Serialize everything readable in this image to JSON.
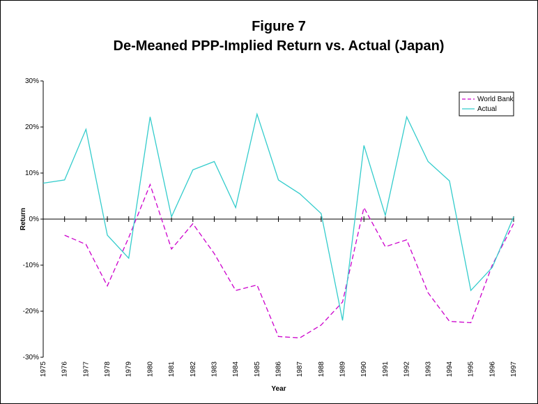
{
  "chart_data": {
    "type": "line",
    "title": "Figure 7",
    "subtitle": "De-Meaned PPP-Implied Return vs. Actual (Japan)",
    "x_label": "Year",
    "y_label": "Return",
    "categories": [
      "1975",
      "1976",
      "1977",
      "1978",
      "1979",
      "1980",
      "1981",
      "1982",
      "1983",
      "1984",
      "1985",
      "1986",
      "1987",
      "1988",
      "1989",
      "1990",
      "1991",
      "1992",
      "1993",
      "1994",
      "1995",
      "1996",
      "1997"
    ],
    "series": [
      {
        "name": "World Bank",
        "color": "#cc00cc",
        "dash": true,
        "values": [
          null,
          -3.5,
          -5.5,
          -14.5,
          -4,
          7.5,
          -6.5,
          -1,
          -7.5,
          -15.5,
          -14.3,
          -25.5,
          -25.8,
          -23,
          -18,
          2.5,
          -6,
          -4.5,
          -16,
          -22.2,
          -22.5,
          -10,
          -1
        ]
      },
      {
        "name": "Actual",
        "color": "#33cccc",
        "dash": false,
        "values": [
          7.8,
          8.5,
          19.5,
          -3.5,
          -8.5,
          22.2,
          0.5,
          10.7,
          12.5,
          2.5,
          22.8,
          8.5,
          5.5,
          1.2,
          -22,
          16,
          0.8,
          22.2,
          12.5,
          8.3,
          -15.5,
          -10.5,
          0.5
        ]
      }
    ],
    "ylim": [
      -30,
      30
    ],
    "yticks": [
      {
        "value": -30,
        "label": "-30%"
      },
      {
        "value": -20,
        "label": "-20%"
      },
      {
        "value": -10,
        "label": "-10%"
      },
      {
        "value": 0,
        "label": "0%"
      },
      {
        "value": 10,
        "label": "10%"
      },
      {
        "value": 20,
        "label": "20%"
      },
      {
        "value": 30,
        "label": "30%"
      }
    ],
    "legend": "top-right"
  }
}
